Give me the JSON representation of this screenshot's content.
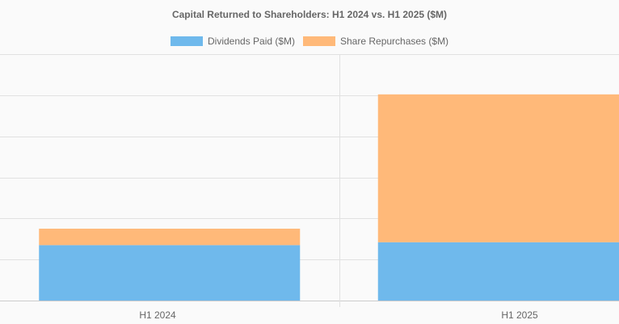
{
  "chart_data": {
    "type": "bar",
    "stacked": true,
    "title": "Capital Returned to Shareholders: H1 2024 vs. H1 2025 ($M)",
    "categories": [
      "H1 2024",
      "H1 2025"
    ],
    "series": [
      {
        "name": "Dividends Paid ($M)",
        "values": [
          1350,
          1420
        ],
        "color": "#6fb9ec"
      },
      {
        "name": "Share Repurchases ($M)",
        "values": [
          400,
          3600
        ],
        "color": "#ffb979"
      }
    ],
    "ylim": [
      0,
      6000
    ],
    "grid": true,
    "legend_position": "top"
  }
}
